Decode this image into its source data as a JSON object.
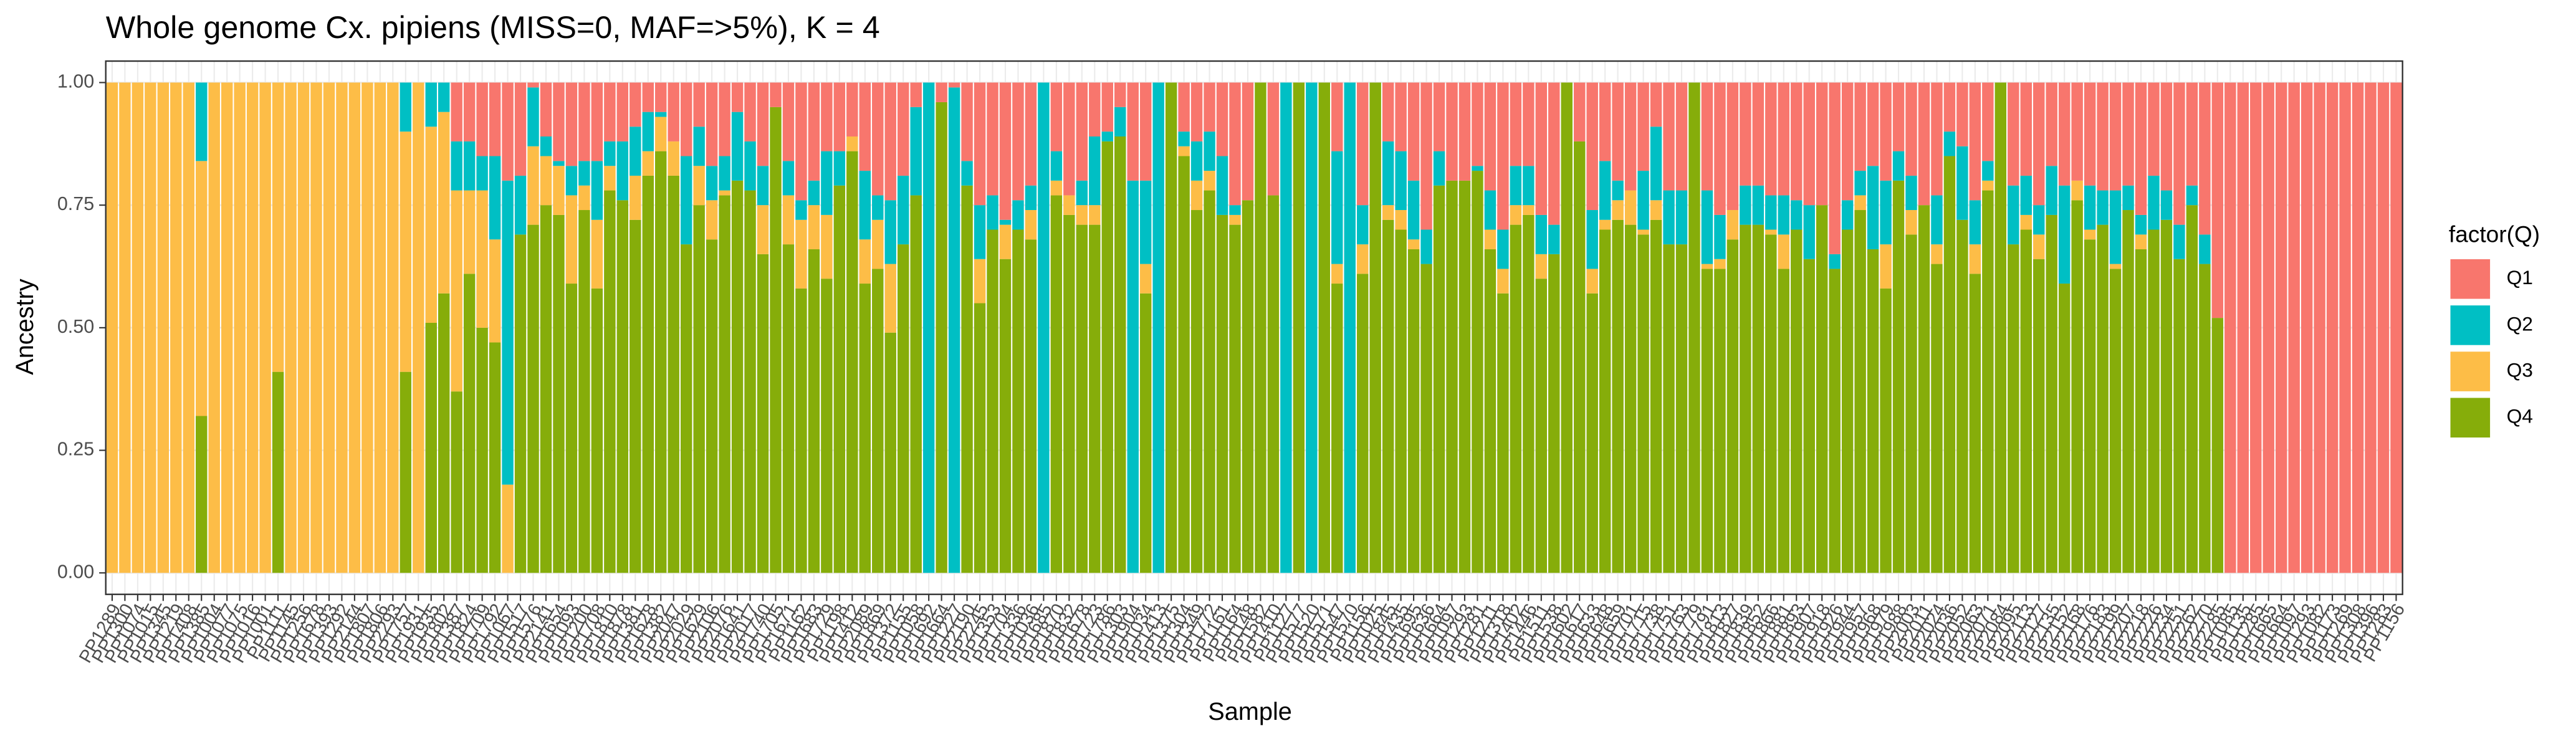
{
  "chart_data": {
    "type": "stacked_bar",
    "title": "Whole genome Cx. pipiens (MISS=0, MAF=>5%), K = 4",
    "x_label": "Sample",
    "y_label": "Ancestry",
    "legend_title": "factor(Q)",
    "legend_position": "right",
    "grid": true,
    "ylim": [
      0,
      1
    ],
    "yticks": [
      {
        "value": 0,
        "label": "0.00"
      },
      {
        "value": 0.25,
        "label": "0.25"
      },
      {
        "value": 0.5,
        "label": "0.50"
      },
      {
        "value": 0.75,
        "label": "0.75"
      },
      {
        "value": 1,
        "label": "1.00"
      }
    ],
    "categories": [
      "PP1289",
      "PP1300",
      "PP1074",
      "PP1015",
      "PP1345",
      "PP1219",
      "PP1408",
      "PP1385",
      "PP1004",
      "PP1077",
      "PP1075",
      "PP1016",
      "PP1001",
      "PP1111",
      "PP1145",
      "PP1256",
      "PP1678",
      "PP1393",
      "PP1292",
      "PP2144",
      "PP1807",
      "PP1806",
      "PP2293",
      "PP1757",
      "PP1931",
      "PP1935",
      "PP1802",
      "PP1387",
      "PP1824",
      "PP1709",
      "PP1792",
      "PP1067",
      "PP1517",
      "PP1576",
      "PP2141",
      "PP1654",
      "PP1093",
      "PP1200",
      "PP1708",
      "PP1810",
      "PP1878",
      "PP1381",
      "PP1628",
      "PP1382",
      "PP2047",
      "PP2029",
      "PP1629",
      "PP2106",
      "PP2076",
      "PP1641",
      "PP2017",
      "PP1740",
      "PP1705",
      "PP1671",
      "PP1162",
      "PP1683",
      "PP1729",
      "PP1198",
      "PP1412",
      "PP2089",
      "PP1869",
      "PP1372",
      "PP1155",
      "PP1058",
      "PP1692",
      "PP1664",
      "PP1227",
      "PP2190",
      "PP2245",
      "PP1353",
      "PP1704",
      "PP1336",
      "PP1036",
      "PP1685",
      "PP1870",
      "PP1832",
      "PP1678",
      "PP1723",
      "PP1786",
      "PP1303",
      "PP1904",
      "PP1034",
      "PP1413",
      "PP1375",
      "PP1304",
      "PP1349",
      "PP1772",
      "PP1161",
      "PP1164",
      "PP1148",
      "PP1582",
      "PP1410",
      "PP1127",
      "PP1577",
      "PP1520",
      "PP1571",
      "PP1547",
      "PP1570",
      "PP1156",
      "PP1025",
      "PP1845",
      "PP1435",
      "PP1695",
      "PP1636",
      "PP1664",
      "PP1097",
      "PP1293",
      "PP1281",
      "PP1211",
      "PP1318",
      "PP1402",
      "PP1446",
      "PP1511",
      "PP1538",
      "PP1602",
      "PP1617",
      "PP1633",
      "PP1648",
      "PP1659",
      "PP1701",
      "PP1715",
      "PP1738",
      "PP1751",
      "PP1763",
      "PP1779",
      "PP1791",
      "PP1813",
      "PP1827",
      "PP1839",
      "PP1852",
      "PP1866",
      "PP1881",
      "PP1893",
      "PP1907",
      "PP1918",
      "PP1926",
      "PP1944",
      "PP1957",
      "PP1968",
      "PP1979",
      "PP1988",
      "PP2003",
      "PP2011",
      "PP2024",
      "PP2036",
      "PP2052",
      "PP2063",
      "PP2071",
      "PP2084",
      "PP2095",
      "PP2113",
      "PP2127",
      "PP2135",
      "PP2152",
      "PP2168",
      "PP2176",
      "PP2183",
      "PP2199",
      "PP2207",
      "PP2218",
      "PP2226",
      "PP2234",
      "PP2251",
      "PP2262",
      "PP2270",
      "PP2285",
      "PP1085",
      "PP1135",
      "PP1285",
      "PP1665",
      "PP1664",
      "PP1097",
      "PP1293",
      "PP1082",
      "PP1173",
      "PP1269",
      "PP1308",
      "PP1396",
      "PP1283",
      "PP1156"
    ],
    "series": [
      {
        "name": "Q1",
        "color": "#F8766D",
        "values": [
          0,
          0,
          0,
          0,
          0,
          0,
          0,
          0,
          0,
          0,
          0,
          0,
          0,
          0,
          0,
          0,
          0,
          0,
          0,
          0,
          0,
          0,
          0,
          0,
          0,
          0,
          0,
          0.12,
          0.12,
          0.15,
          0.15,
          0.2,
          0.19,
          0.01,
          0.11,
          0.16,
          0.17,
          0.16,
          0.16,
          0.12,
          0.12,
          0.09,
          0.06,
          0.06,
          0.12,
          0.15,
          0.09,
          0.17,
          0.15,
          0.06,
          0.12,
          0.17,
          0.05,
          0.16,
          0.24,
          0.2,
          0.14,
          0.14,
          0.11,
          0.18,
          0.23,
          0.24,
          0.19,
          0.05,
          0,
          0.04,
          0.01,
          0.16,
          0.25,
          0.23,
          0.28,
          0.24,
          0.21,
          0,
          0.14,
          0.23,
          0.2,
          0.11,
          0.1,
          0.05,
          0.2,
          0.2,
          0,
          0,
          0.1,
          0.12,
          0.1,
          0.15,
          0.25,
          0.24,
          0,
          0.23,
          0,
          0,
          0,
          0,
          0.14,
          0,
          0.25,
          0,
          0.12,
          0.14,
          0.2,
          0.3,
          0.14,
          0.2,
          0.2,
          0.17,
          0.22,
          0.3,
          0.17,
          0.17,
          0.27,
          0.29,
          0,
          0.12,
          0.26,
          0.16,
          0.2,
          0.22,
          0.18,
          0.09,
          0.22,
          0.22,
          0,
          0.22,
          0.27,
          0.26,
          0.21,
          0.21,
          0.23,
          0.23,
          0.24,
          0.25,
          0.25,
          0.35,
          0.24,
          0.18,
          0.17,
          0.2,
          0.14,
          0.19,
          0.25,
          0.23,
          0.1,
          0.13,
          0.24,
          0.16,
          0,
          0.21,
          0.19,
          0.25,
          0.17,
          0.21,
          0.2,
          0.21,
          0.22,
          0.22,
          0.21,
          0.27,
          0.19,
          0.22,
          0.29,
          0.21,
          0.31,
          0.48,
          1,
          1,
          1,
          1,
          1,
          1,
          1,
          1,
          1,
          1,
          1,
          1,
          1,
          1
        ]
      },
      {
        "name": "Q2",
        "color": "#00BFC4",
        "values": [
          0,
          0,
          0,
          0,
          0,
          0,
          0,
          0.16,
          0,
          0,
          0,
          0,
          0,
          0,
          0,
          0,
          0,
          0,
          0,
          0,
          0,
          0,
          0,
          0.1,
          0,
          0.09,
          0.06,
          0.1,
          0.1,
          0.07,
          0.17,
          0.62,
          0.12,
          0.12,
          0.04,
          0.01,
          0.06,
          0.05,
          0.12,
          0.05,
          0.12,
          0.1,
          0.08,
          0.01,
          0,
          0.18,
          0.08,
          0.07,
          0.07,
          0.14,
          0.1,
          0.08,
          0,
          0.07,
          0.04,
          0.05,
          0.13,
          0.07,
          0,
          0.14,
          0.05,
          0.13,
          0.14,
          0.18,
          1,
          0,
          0.99,
          0.05,
          0.11,
          0.07,
          0.01,
          0.06,
          0.05,
          1,
          0.06,
          0,
          0.05,
          0.14,
          0.02,
          0.06,
          0.8,
          0.17,
          1,
          0,
          0.03,
          0.08,
          0.08,
          0.12,
          0.02,
          0,
          0,
          0,
          1,
          0,
          1,
          0,
          0.23,
          1,
          0.08,
          0,
          0.13,
          0.12,
          0.12,
          0.07,
          0.07,
          0,
          0,
          0.01,
          0.08,
          0.08,
          0.08,
          0.08,
          0.08,
          0.06,
          0,
          0,
          0.12,
          0.12,
          0.04,
          0,
          0.12,
          0.15,
          0.11,
          0.11,
          0,
          0.15,
          0.09,
          0,
          0.08,
          0.08,
          0.07,
          0.08,
          0.06,
          0.11,
          0,
          0.03,
          0.06,
          0.05,
          0.17,
          0.13,
          0.06,
          0.07,
          0,
          0.1,
          0.05,
          0.15,
          0.09,
          0.04,
          0,
          0.12,
          0.08,
          0.06,
          0.1,
          0.2,
          0,
          0.09,
          0.07,
          0.15,
          0.05,
          0.04,
          0.11,
          0.06,
          0.07,
          0.04,
          0.06,
          0,
          0,
          0,
          0,
          0,
          0,
          0,
          0,
          0,
          0,
          0,
          0,
          0,
          0,
          0
        ]
      },
      {
        "name": "Q3",
        "color": "#FDBD47",
        "values": [
          1,
          1,
          1,
          1,
          1,
          1,
          1,
          0.52,
          1,
          1,
          1,
          1,
          1,
          0.59,
          1,
          1,
          1,
          1,
          1,
          1,
          1,
          1,
          1,
          0.49,
          1,
          0.4,
          0.37,
          0.41,
          0.17,
          0.28,
          0.21,
          0.18,
          0,
          0.16,
          0.1,
          0.1,
          0.18,
          0.05,
          0.14,
          0.05,
          0,
          0.09,
          0.05,
          0.07,
          0.07,
          0,
          0.08,
          0.08,
          0.01,
          0,
          0,
          0.1,
          0,
          0.1,
          0.14,
          0.09,
          0.13,
          0,
          0.03,
          0.09,
          0.1,
          0.14,
          0,
          0,
          0,
          0,
          0,
          0,
          0.09,
          0,
          0.07,
          0,
          0.06,
          0,
          0.03,
          0.04,
          0.04,
          0.04,
          0,
          0,
          0,
          0.06,
          0,
          0,
          0.02,
          0.06,
          0.04,
          0,
          0.02,
          0,
          0,
          0,
          0,
          0,
          0,
          0,
          0.04,
          0,
          0.06,
          0,
          0.03,
          0.04,
          0.02,
          0,
          0,
          0,
          0,
          0,
          0.04,
          0.05,
          0.04,
          0.02,
          0.05,
          0,
          0,
          0,
          0.05,
          0.02,
          0.04,
          0.07,
          0.01,
          0.04,
          0,
          0,
          0,
          0.01,
          0.02,
          0.06,
          0,
          0,
          0.01,
          0.07,
          0,
          0,
          0,
          0,
          0,
          0.03,
          0,
          0.09,
          0,
          0.05,
          0,
          0.04,
          0,
          0,
          0.06,
          0.02,
          0,
          0,
          0.03,
          0.05,
          0,
          0,
          0.04,
          0.02,
          0,
          0.01,
          0,
          0.03,
          0,
          0,
          0,
          0,
          0,
          0,
          0,
          0,
          0,
          0,
          0,
          0,
          0,
          0,
          0,
          0,
          0,
          0,
          0,
          0
        ]
      },
      {
        "name": "Q4",
        "color": "#86AD0A",
        "values": [
          0,
          0,
          0,
          0,
          0,
          0,
          0,
          0.32,
          0,
          0,
          0,
          0,
          0,
          0.41,
          0,
          0,
          0,
          0,
          0,
          0,
          0,
          0,
          0,
          0.41,
          0,
          0.51,
          0.57,
          0.37,
          0.61,
          0.5,
          0.47,
          0,
          0.69,
          0.71,
          0.75,
          0.73,
          0.59,
          0.74,
          0.58,
          0.78,
          0.76,
          0.72,
          0.81,
          0.86,
          0.81,
          0.67,
          0.75,
          0.68,
          0.77,
          0.8,
          0.78,
          0.65,
          0.95,
          0.67,
          0.58,
          0.66,
          0.6,
          0.79,
          0.86,
          0.59,
          0.62,
          0.49,
          0.67,
          0.77,
          0,
          0.96,
          0,
          0.79,
          0.55,
          0.7,
          0.64,
          0.7,
          0.68,
          0,
          0.77,
          0.73,
          0.71,
          0.71,
          0.88,
          0.89,
          0,
          0.57,
          0,
          1,
          0.85,
          0.74,
          0.78,
          0.73,
          0.71,
          0.76,
          1,
          0.77,
          0,
          1,
          0,
          1,
          0.59,
          0,
          0.61,
          1,
          0.72,
          0.7,
          0.66,
          0.63,
          0.79,
          0.8,
          0.8,
          0.82,
          0.66,
          0.57,
          0.71,
          0.73,
          0.6,
          0.65,
          1,
          0.88,
          0.57,
          0.7,
          0.72,
          0.71,
          0.69,
          0.72,
          0.67,
          0.67,
          1,
          0.62,
          0.62,
          0.68,
          0.71,
          0.71,
          0.69,
          0.62,
          0.7,
          0.64,
          0.75,
          0.62,
          0.7,
          0.74,
          0.66,
          0.58,
          0.8,
          0.69,
          0.75,
          0.63,
          0.85,
          0.72,
          0.61,
          0.78,
          1,
          0.67,
          0.7,
          0.64,
          0.73,
          0.59,
          0.76,
          0.68,
          0.71,
          0.62,
          0.74,
          0.66,
          0.7,
          0.72,
          0.64,
          0.75,
          0.63,
          0.52,
          0,
          0,
          0,
          0,
          0,
          0,
          0,
          0,
          0,
          0,
          0,
          0,
          0,
          0
        ]
      }
    ]
  }
}
